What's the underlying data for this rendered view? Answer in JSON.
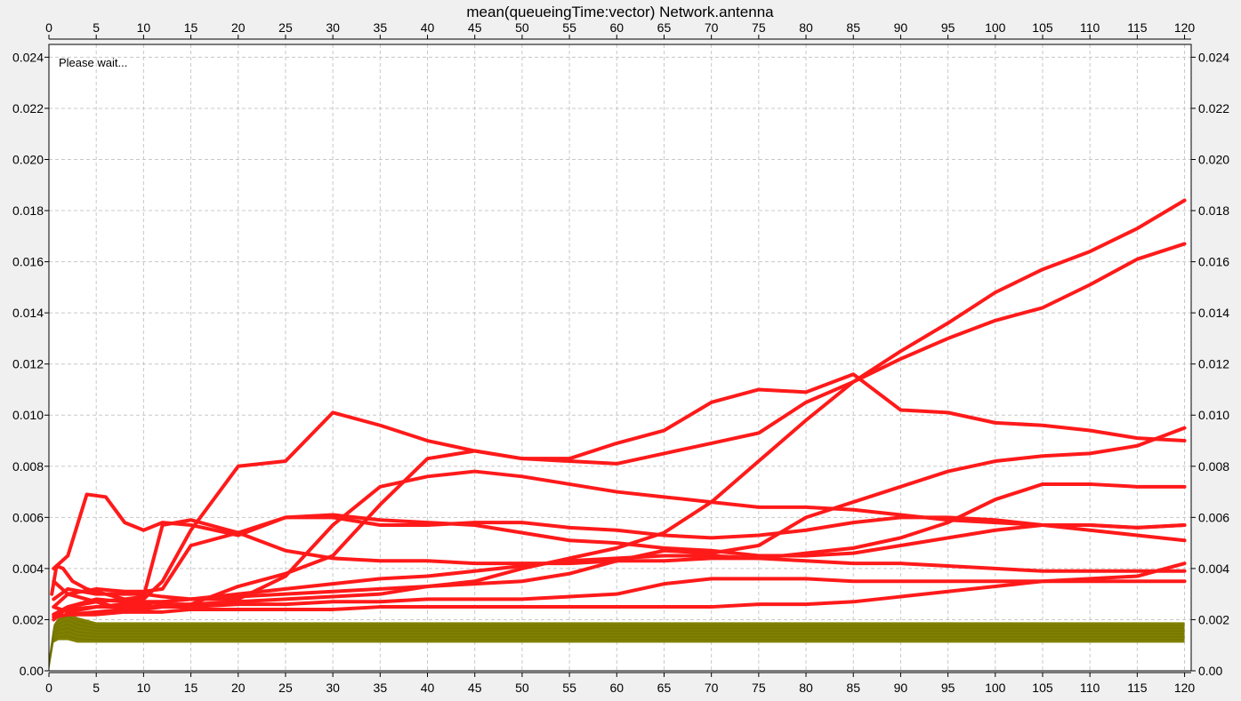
{
  "window": {
    "title": "mean(queueingTime:vector) Network.antenna",
    "status_text": "Please wait..."
  },
  "colors": {
    "background": "#f0f0f0",
    "plot_background": "#ffffff",
    "series_red": "#ff1a1a",
    "series_olive": "#808000",
    "grid": "#c8c8c8"
  },
  "chart_data": {
    "type": "line",
    "title": "mean(queueingTime:vector) Network.antenna",
    "xlabel": "",
    "ylabel": "",
    "xlim": [
      0,
      120.7
    ],
    "ylim": [
      0,
      0.0245
    ],
    "x_ticks": [
      0,
      5,
      10,
      15,
      20,
      25,
      30,
      35,
      40,
      45,
      50,
      55,
      60,
      65,
      70,
      75,
      80,
      85,
      90,
      95,
      100,
      105,
      110,
      115,
      120
    ],
    "y_ticks": [
      0.0,
      0.002,
      0.004,
      0.006,
      0.008,
      0.01,
      0.012,
      0.014,
      0.016,
      0.018,
      0.02,
      0.022,
      0.024
    ],
    "y_tick_labels": [
      "0.00",
      "0.002",
      "0.004",
      "0.006",
      "0.008",
      "0.010",
      "0.012",
      "0.014",
      "0.016",
      "0.018",
      "0.020",
      "0.022",
      "0.024"
    ],
    "x_axis_top": true,
    "y_axis_right": true,
    "grid": true,
    "legend": "none",
    "series": [
      {
        "color": "#ff1a1a",
        "x": [
          0.5,
          2,
          5,
          8,
          10,
          12,
          15,
          20,
          25,
          30,
          35,
          40,
          45,
          50,
          55,
          60,
          65,
          70,
          75,
          80,
          85,
          90,
          95,
          100,
          105,
          110,
          115,
          120
        ],
        "y": [
          0.0035,
          0.003,
          0.0027,
          0.0024,
          0.0024,
          0.0026,
          0.0026,
          0.0027,
          0.0028,
          0.0029,
          0.003,
          0.0033,
          0.0035,
          0.004,
          0.0044,
          0.0048,
          0.0054,
          0.0066,
          0.0082,
          0.0098,
          0.0113,
          0.0125,
          0.0136,
          0.0148,
          0.0157,
          0.0164,
          0.0173,
          0.0184
        ]
      },
      {
        "color": "#ff1a1a",
        "x": [
          0.5,
          2,
          5,
          8,
          10,
          12,
          15,
          20,
          25,
          30,
          35,
          40,
          45,
          50,
          55,
          60,
          65,
          70,
          75,
          80,
          85,
          90,
          95,
          100,
          105,
          110,
          115,
          120
        ],
        "y": [
          0.0025,
          0.0023,
          0.0025,
          0.0025,
          0.0025,
          0.0025,
          0.0026,
          0.0033,
          0.0038,
          0.0045,
          0.0065,
          0.0083,
          0.0086,
          0.0083,
          0.0082,
          0.0081,
          0.0085,
          0.0089,
          0.0093,
          0.0105,
          0.0113,
          0.0122,
          0.013,
          0.0137,
          0.0142,
          0.0151,
          0.0161,
          0.0167
        ]
      },
      {
        "color": "#ff1a1a",
        "x": [
          0.5,
          2,
          5,
          8,
          10,
          12,
          15,
          20,
          25,
          30,
          35,
          40,
          45,
          50,
          55,
          60,
          65,
          70,
          75,
          80,
          85,
          90,
          95,
          100,
          105,
          110,
          115,
          120
        ],
        "y": [
          0.002,
          0.0025,
          0.0028,
          0.0027,
          0.0028,
          0.0035,
          0.0055,
          0.008,
          0.0082,
          0.0101,
          0.0096,
          0.009,
          0.0086,
          0.0083,
          0.0083,
          0.0089,
          0.0094,
          0.0105,
          0.011,
          0.0109,
          0.0116,
          0.0102,
          0.0101,
          0.0097,
          0.0096,
          0.0094,
          0.0091,
          0.009
        ]
      },
      {
        "color": "#ff1a1a",
        "x": [
          0.5,
          2,
          4,
          6,
          8,
          10,
          12,
          15,
          20,
          25,
          30,
          35,
          40,
          45,
          50,
          55,
          60,
          65,
          70,
          75,
          80,
          85,
          90,
          95,
          100,
          105,
          110,
          115,
          120
        ],
        "y": [
          0.004,
          0.0045,
          0.0069,
          0.0068,
          0.0058,
          0.0055,
          0.0058,
          0.0057,
          0.0053,
          0.006,
          0.006,
          0.0057,
          0.0057,
          0.0058,
          0.0058,
          0.0056,
          0.0055,
          0.0053,
          0.0052,
          0.0053,
          0.0055,
          0.0058,
          0.006,
          0.006,
          0.0059,
          0.0057,
          0.0055,
          0.0053,
          0.0051
        ]
      },
      {
        "color": "#ff1a1a",
        "x": [
          0.5,
          2,
          5,
          8,
          10,
          12,
          15,
          20,
          25,
          30,
          35,
          40,
          45,
          50,
          55,
          60,
          65,
          70,
          75,
          80,
          85,
          90,
          95,
          100,
          105,
          110,
          115,
          120
        ],
        "y": [
          0.0025,
          0.003,
          0.0032,
          0.0031,
          0.0031,
          0.0032,
          0.0049,
          0.0054,
          0.006,
          0.0061,
          0.0059,
          0.0058,
          0.0057,
          0.0054,
          0.0051,
          0.005,
          0.0048,
          0.0047,
          0.0045,
          0.0045,
          0.0046,
          0.0049,
          0.0052,
          0.0055,
          0.0057,
          0.0057,
          0.0056,
          0.0057
        ]
      },
      {
        "color": "#ff1a1a",
        "x": [
          0.5,
          2,
          5,
          8,
          10,
          12,
          15,
          20,
          25,
          30,
          35,
          40,
          45,
          50,
          55,
          60,
          65,
          70,
          75,
          80,
          85,
          90,
          95,
          100,
          105,
          110,
          115,
          120
        ],
        "y": [
          0.0022,
          0.0025,
          0.0027,
          0.0028,
          0.0029,
          0.0057,
          0.0059,
          0.0054,
          0.0047,
          0.0044,
          0.0043,
          0.0043,
          0.0042,
          0.0042,
          0.0042,
          0.0043,
          0.0043,
          0.0044,
          0.0044,
          0.0043,
          0.0042,
          0.0042,
          0.0041,
          0.004,
          0.0039,
          0.0039,
          0.0039,
          0.0039
        ]
      },
      {
        "color": "#ff1a1a",
        "x": [
          0.5,
          2,
          5,
          8,
          10,
          12,
          15,
          20,
          25,
          30,
          35,
          40,
          45,
          50,
          55,
          60,
          65,
          70,
          75,
          80,
          85,
          90,
          95,
          100,
          105,
          110,
          115,
          120
        ],
        "y": [
          0.0028,
          0.0032,
          0.003,
          0.003,
          0.003,
          0.0029,
          0.0028,
          0.0028,
          0.0037,
          0.0057,
          0.0072,
          0.0076,
          0.0078,
          0.0076,
          0.0073,
          0.007,
          0.0068,
          0.0066,
          0.0064,
          0.0064,
          0.0063,
          0.0061,
          0.0059,
          0.0058,
          0.0057,
          0.0057,
          0.0056,
          0.0057
        ]
      },
      {
        "color": "#ff1a1a",
        "x": [
          0.5,
          2,
          5,
          8,
          10,
          12,
          15,
          20,
          25,
          30,
          35,
          40,
          45,
          50,
          55,
          60,
          65,
          70,
          75,
          80,
          85,
          90,
          95,
          100,
          105,
          110,
          115,
          120
        ],
        "y": [
          0.0022,
          0.0024,
          0.0025,
          0.0026,
          0.0026,
          0.0027,
          0.0028,
          0.003,
          0.0032,
          0.0034,
          0.0036,
          0.0037,
          0.0039,
          0.0041,
          0.0043,
          0.0044,
          0.0045,
          0.0045,
          0.0044,
          0.0046,
          0.0048,
          0.0052,
          0.0058,
          0.0067,
          0.0073,
          0.0073,
          0.0072,
          0.0072
        ]
      },
      {
        "color": "#ff1a1a",
        "x": [
          0.5,
          2,
          5,
          8,
          10,
          12,
          15,
          20,
          25,
          30,
          35,
          40,
          45,
          50,
          55,
          60,
          65,
          70,
          75,
          80,
          85,
          90,
          95,
          100,
          105,
          110,
          115,
          120
        ],
        "y": [
          0.0022,
          0.0024,
          0.0025,
          0.0026,
          0.0027,
          0.0027,
          0.0028,
          0.0029,
          0.003,
          0.0031,
          0.0032,
          0.0033,
          0.0034,
          0.0035,
          0.0038,
          0.0043,
          0.0047,
          0.0046,
          0.0049,
          0.006,
          0.0066,
          0.0072,
          0.0078,
          0.0082,
          0.0084,
          0.0085,
          0.0088,
          0.0095
        ]
      },
      {
        "color": "#ff1a1a",
        "x": [
          0.5,
          2,
          5,
          8,
          10,
          12,
          15,
          20,
          25,
          30,
          35,
          40,
          45,
          50,
          55,
          60,
          65,
          70,
          75,
          80,
          85,
          90,
          95,
          100,
          105,
          110,
          115,
          120
        ],
        "y": [
          0.0021,
          0.0022,
          0.0023,
          0.0024,
          0.0024,
          0.0025,
          0.0025,
          0.0026,
          0.0026,
          0.0027,
          0.0027,
          0.0028,
          0.0028,
          0.0028,
          0.0029,
          0.003,
          0.0034,
          0.0036,
          0.0036,
          0.0036,
          0.0035,
          0.0035,
          0.0035,
          0.0035,
          0.0035,
          0.0035,
          0.0035,
          0.0035
        ]
      },
      {
        "color": "#ff1a1a",
        "x": [
          0.5,
          2,
          5,
          8,
          10,
          12,
          15,
          20,
          25,
          30,
          35,
          40,
          45,
          50,
          55,
          60,
          65,
          70,
          75,
          80,
          85,
          90,
          95,
          100,
          105,
          110,
          115,
          120
        ],
        "y": [
          0.0021,
          0.0022,
          0.0022,
          0.0023,
          0.0023,
          0.0023,
          0.0024,
          0.0024,
          0.0024,
          0.0024,
          0.0025,
          0.0025,
          0.0025,
          0.0025,
          0.0025,
          0.0025,
          0.0025,
          0.0025,
          0.0026,
          0.0026,
          0.0027,
          0.0029,
          0.0031,
          0.0033,
          0.0035,
          0.0036,
          0.0037,
          0.0042
        ]
      },
      {
        "color": "#ff1a1a",
        "x": [
          0.3,
          0.8,
          1.5,
          2.5,
          4,
          6,
          8
        ],
        "y": [
          0.003,
          0.0041,
          0.004,
          0.0035,
          0.0032,
          0.003,
          0.0028
        ]
      }
    ],
    "bands": [
      {
        "color": "#808000",
        "x": [
          0,
          0.5,
          1,
          2,
          3,
          5,
          10,
          20,
          40,
          60,
          80,
          100,
          120
        ],
        "upper": [
          0.0005,
          0.0018,
          0.0021,
          0.0023,
          0.0021,
          0.0019,
          0.0019,
          0.0019,
          0.0019,
          0.0019,
          0.0019,
          0.0019,
          0.0019
        ],
        "lower": [
          0.0,
          0.0011,
          0.0012,
          0.0012,
          0.0011,
          0.0011,
          0.0011,
          0.0011,
          0.0011,
          0.0011,
          0.0011,
          0.0011,
          0.0011
        ]
      }
    ]
  }
}
